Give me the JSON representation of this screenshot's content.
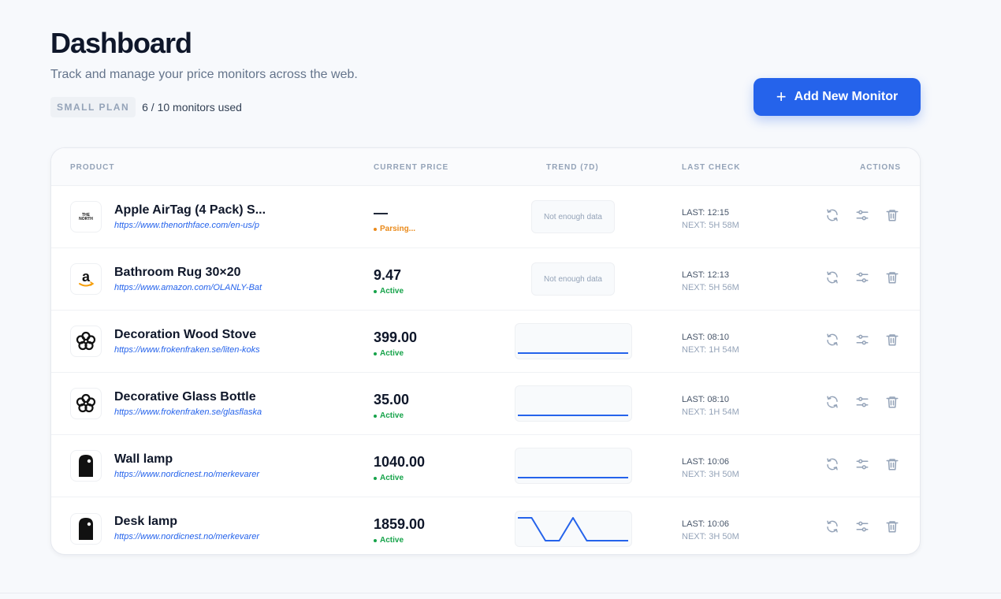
{
  "header": {
    "title": "Dashboard",
    "subtitle": "Track and manage your price monitors across the web.",
    "plan_badge": "SMALL PLAN",
    "plan_usage": "6 / 10 monitors used",
    "add_button": "Add New Monitor"
  },
  "table": {
    "columns": {
      "product": "PRODUCT",
      "price": "CURRENT PRICE",
      "trend": "TREND (7D)",
      "last_check": "LAST CHECK",
      "actions": "ACTIONS"
    },
    "rows": [
      {
        "name": "Apple AirTag (4 Pack) S...",
        "url": "https://www.thenorthface.com/en-us/p",
        "logo": "north-face",
        "price": "—",
        "status": "Parsing...",
        "status_type": "parsing",
        "trend_text": "Not enough data",
        "last": "LAST: 12:15",
        "next": "NEXT: 5H 58M"
      },
      {
        "name": "Bathroom Rug 30×20",
        "url": "https://www.amazon.com/OLANLY-Bat",
        "logo": "amazon",
        "price": "9.47",
        "status": "Active",
        "status_type": "active",
        "trend_text": "Not enough data",
        "last": "LAST: 12:13",
        "next": "NEXT: 5H 56M"
      },
      {
        "name": "Decoration Wood Stove",
        "url": "https://www.frokenfraken.se/liten-koks",
        "logo": "frokenfraken",
        "price": "399.00",
        "status": "Active",
        "status_type": "active",
        "trend": [
          399,
          399,
          399,
          399,
          399,
          399,
          399
        ],
        "last": "LAST: 08:10",
        "next": "NEXT: 1H 54M"
      },
      {
        "name": "Decorative Glass Bottle",
        "url": "https://www.frokenfraken.se/glasflaska",
        "logo": "frokenfraken",
        "price": "35.00",
        "status": "Active",
        "status_type": "active",
        "trend": [
          35,
          35,
          35,
          35,
          35,
          35,
          35
        ],
        "last": "LAST: 08:10",
        "next": "NEXT: 1H 54M"
      },
      {
        "name": "Wall lamp",
        "url": "https://www.nordicnest.no/merkevarer",
        "logo": "nordicnest",
        "price": "1040.00",
        "status": "Active",
        "status_type": "active",
        "trend": [
          1040,
          1040,
          1040,
          1040,
          1040,
          1040,
          1040
        ],
        "last": "LAST: 10:06",
        "next": "NEXT: 3H 50M"
      },
      {
        "name": "Desk lamp",
        "url": "https://www.nordicnest.no/merkevarer",
        "logo": "nordicnest",
        "price": "1859.00",
        "status": "Active",
        "status_type": "active",
        "trend": [
          1999,
          1999,
          1859,
          1859,
          1999,
          1859,
          1859,
          1859,
          1859
        ],
        "last": "LAST: 10:06",
        "next": "NEXT: 3H 50M"
      }
    ]
  },
  "colors": {
    "accent": "#2563eb",
    "active": "#16a34a",
    "parsing": "#ea8a1a",
    "icon": "#94a3b8"
  },
  "icons": {
    "refresh": "refresh-icon",
    "settings": "sliders-icon",
    "delete": "trash-icon",
    "add": "plus-icon"
  }
}
